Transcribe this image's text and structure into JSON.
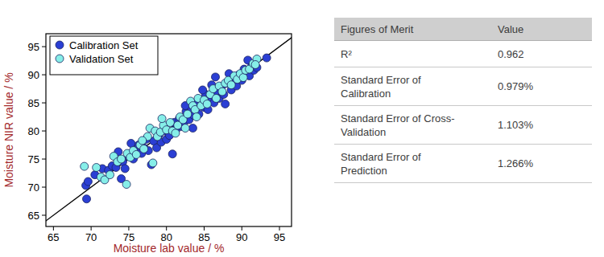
{
  "chart_data": {
    "type": "scatter",
    "xlabel": "Moisture lab value / %",
    "ylabel": "Moisture NIR value / %",
    "xlim": [
      64,
      96.6
    ],
    "ylim": [
      63,
      97.3
    ],
    "xticks": [
      65,
      70,
      75,
      80,
      85,
      90,
      95
    ],
    "yticks": [
      65,
      70,
      75,
      80,
      85,
      90,
      95
    ],
    "legend": "upper left",
    "series": [
      {
        "name": "Calibration Set",
        "color": "#2b3fd4",
        "marker": "circle",
        "x": [
          69.4,
          69.3,
          69.6,
          70.5,
          71.5,
          72.3,
          72.8,
          73.3,
          74.0,
          74.2,
          74.5,
          75.0,
          75.6,
          76.0,
          76.3,
          76.7,
          77.0,
          77.3,
          77.6,
          78.0,
          78.3,
          78.7,
          79.0,
          79.3,
          79.7,
          80.0,
          80.4,
          80.8,
          81.0,
          81.3,
          81.7,
          82.0,
          82.3,
          82.6,
          83.0,
          83.3,
          83.6,
          84.0,
          84.3,
          84.6,
          85.0,
          85.2,
          85.5,
          85.8,
          86.0,
          86.3,
          86.5,
          86.8,
          87.0,
          87.3,
          87.6,
          88.0,
          88.3,
          88.6,
          89.0,
          89.3,
          89.6,
          90.0,
          90.3,
          90.6,
          90.8,
          91.0,
          91.3,
          91.6,
          92.0,
          93.3,
          84.8,
          83.5,
          87.8,
          82.5,
          75.3,
          73.6
        ],
        "values": [
          67.9,
          70.3,
          71.0,
          72.2,
          73.3,
          73.0,
          73.8,
          73.5,
          71.5,
          74.5,
          73.3,
          75.5,
          75.0,
          76.8,
          77.5,
          76.0,
          77.0,
          78.5,
          76.5,
          74.0,
          78.2,
          77.0,
          79.3,
          78.0,
          80.0,
          78.5,
          79.2,
          75.9,
          81.5,
          80.3,
          82.2,
          80.8,
          81.5,
          83.5,
          82.0,
          84.0,
          82.8,
          84.8,
          83.0,
          85.5,
          84.2,
          86.5,
          83.8,
          86.0,
          88.2,
          85.0,
          89.6,
          86.8,
          85.8,
          87.8,
          86.5,
          88.5,
          90.2,
          87.3,
          89.0,
          88.0,
          90.0,
          89.0,
          91.0,
          90.5,
          92.6,
          89.8,
          91.5,
          90.8,
          91.3,
          93.0,
          87.3,
          80.5,
          84.8,
          84.5,
          77.8,
          76.3
        ]
      },
      {
        "name": "Validation Set",
        "color": "#86eee8",
        "marker": "circle",
        "x": [
          69.1,
          70.7,
          71.3,
          71.8,
          72.5,
          73.0,
          73.5,
          74.0,
          74.7,
          74.8,
          75.2,
          75.6,
          76.0,
          76.5,
          77.0,
          77.5,
          77.8,
          78.2,
          78.5,
          78.8,
          79.2,
          79.6,
          80.0,
          80.5,
          80.8,
          81.2,
          81.5,
          81.8,
          82.2,
          82.5,
          82.8,
          83.2,
          83.5,
          83.8,
          84.2,
          84.6,
          85.0,
          85.4,
          85.8,
          86.2,
          86.6,
          87.0,
          87.4,
          87.8,
          88.2,
          88.6,
          89.0,
          89.4,
          89.8,
          90.2,
          90.5,
          91.0,
          91.5,
          92.0,
          91.8,
          84.0,
          79.4,
          76.8
        ],
        "values": [
          73.7,
          73.5,
          71.8,
          71.3,
          72.2,
          75.5,
          74.5,
          75.0,
          70.5,
          76.0,
          75.3,
          76.5,
          75.8,
          77.5,
          76.8,
          79.0,
          80.5,
          74.3,
          80.0,
          79.0,
          79.8,
          81.0,
          80.2,
          81.5,
          80.0,
          79.6,
          81.0,
          82.5,
          82.0,
          80.5,
          83.0,
          85.3,
          84.5,
          83.8,
          85.8,
          84.5,
          85.5,
          84.8,
          86.5,
          87.5,
          85.8,
          88.0,
          87.0,
          88.5,
          89.0,
          88.2,
          89.8,
          89.2,
          90.2,
          89.5,
          90.8,
          91.0,
          92.0,
          92.8,
          91.8,
          82.5,
          82.2,
          78.3
        ]
      }
    ]
  },
  "table": {
    "header": [
      "Figures of Merit",
      "Value"
    ],
    "rows": [
      [
        "R²",
        "0.962"
      ],
      [
        "Standard Error of Calibration",
        "0.979%"
      ],
      [
        "Standard Error of Cross-Validation",
        "1.103%"
      ],
      [
        "Standard Error of Prediction",
        "1.266%"
      ]
    ]
  }
}
